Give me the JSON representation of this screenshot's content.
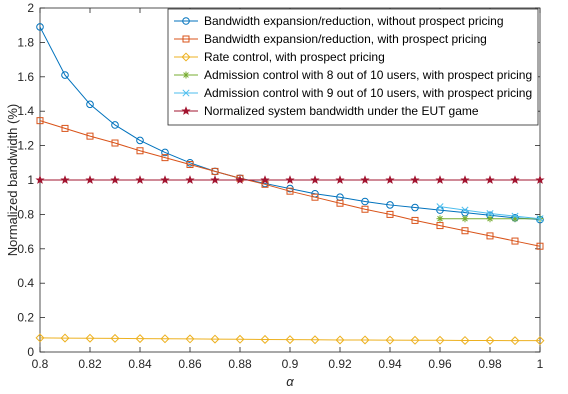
{
  "chart_data": {
    "type": "line",
    "title": "",
    "xlabel": "α",
    "ylabel": "Normalized bandwidth (%)",
    "xlim": [
      0.8,
      1.0
    ],
    "ylim": [
      0,
      2
    ],
    "xticks": [
      0.8,
      0.82,
      0.84,
      0.86,
      0.88,
      0.9,
      0.92,
      0.94,
      0.96,
      0.98,
      1
    ],
    "xtick_labels": [
      "0.8",
      "0.82",
      "0.84",
      "0.86",
      "0.88",
      "0.9",
      "0.92",
      "0.94",
      "0.96",
      "0.98",
      "1"
    ],
    "yticks": [
      0,
      0.2,
      0.4,
      0.6,
      0.8,
      1,
      1.2,
      1.4,
      1.6,
      1.8,
      2
    ],
    "ytick_labels": [
      "0",
      "0.2",
      "0.4",
      "0.6",
      "0.8",
      "1",
      "1.2",
      "1.4",
      "1.6",
      "1.8",
      "2"
    ],
    "grid": false,
    "legend_position": "top-right",
    "series": [
      {
        "name": "Bandwidth expansion/reduction, without prospect pricing",
        "color": "#0072BD",
        "marker": "circle",
        "x": [
          0.8,
          0.81,
          0.82,
          0.83,
          0.84,
          0.85,
          0.86,
          0.87,
          0.88,
          0.89,
          0.9,
          0.91,
          0.92,
          0.93,
          0.94,
          0.95,
          0.96,
          0.97,
          0.98,
          0.99,
          1.0
        ],
        "y": [
          1.89,
          1.61,
          1.44,
          1.32,
          1.23,
          1.16,
          1.1,
          1.05,
          1.01,
          0.98,
          0.95,
          0.92,
          0.9,
          0.875,
          0.855,
          0.84,
          0.825,
          0.81,
          0.795,
          0.78,
          0.77
        ]
      },
      {
        "name": "Bandwidth expansion/reduction, with prospect pricing",
        "color": "#D95319",
        "marker": "square",
        "x": [
          0.8,
          0.81,
          0.82,
          0.83,
          0.84,
          0.85,
          0.86,
          0.87,
          0.88,
          0.89,
          0.9,
          0.91,
          0.92,
          0.93,
          0.94,
          0.95,
          0.96,
          0.97,
          0.98,
          0.99,
          1.0
        ],
        "y": [
          1.345,
          1.3,
          1.255,
          1.215,
          1.17,
          1.13,
          1.09,
          1.05,
          1.01,
          0.975,
          0.935,
          0.9,
          0.865,
          0.83,
          0.8,
          0.765,
          0.735,
          0.705,
          0.675,
          0.645,
          0.615
        ]
      },
      {
        "name": "Rate control, with prospect pricing",
        "color": "#EDB120",
        "marker": "diamond",
        "x": [
          0.8,
          0.81,
          0.82,
          0.83,
          0.84,
          0.85,
          0.86,
          0.87,
          0.88,
          0.89,
          0.9,
          0.91,
          0.92,
          0.93,
          0.94,
          0.95,
          0.96,
          0.97,
          0.98,
          0.99,
          1.0
        ],
        "y": [
          0.082,
          0.081,
          0.08,
          0.079,
          0.078,
          0.077,
          0.076,
          0.075,
          0.074,
          0.073,
          0.072,
          0.071,
          0.07,
          0.07,
          0.069,
          0.068,
          0.068,
          0.067,
          0.067,
          0.066,
          0.066
        ]
      },
      {
        "name": "Admission control with 8 out of 10 users, with prospect pricing",
        "color": "#77AC30",
        "marker": "asterisk",
        "x": [
          0.96,
          0.97,
          0.98,
          0.99,
          1.0
        ],
        "y": [
          0.775,
          0.775,
          0.775,
          0.775,
          0.775
        ]
      },
      {
        "name": "Admission control with 9 out of 10 users, with prospect pricing",
        "color": "#4DBEEE",
        "marker": "x",
        "x": [
          0.96,
          0.97,
          0.98,
          0.99,
          1.0
        ],
        "y": [
          0.845,
          0.825,
          0.805,
          0.79,
          0.775
        ]
      },
      {
        "name": "Normalized system bandwidth under the EUT game",
        "color": "#A2142F",
        "marker": "star",
        "x": [
          0.8,
          0.81,
          0.82,
          0.83,
          0.84,
          0.85,
          0.86,
          0.87,
          0.88,
          0.89,
          0.9,
          0.91,
          0.92,
          0.93,
          0.94,
          0.95,
          0.96,
          0.97,
          0.98,
          0.99,
          1.0
        ],
        "y": [
          1,
          1,
          1,
          1,
          1,
          1,
          1,
          1,
          1,
          1,
          1,
          1,
          1,
          1,
          1,
          1,
          1,
          1,
          1,
          1,
          1
        ]
      }
    ]
  }
}
